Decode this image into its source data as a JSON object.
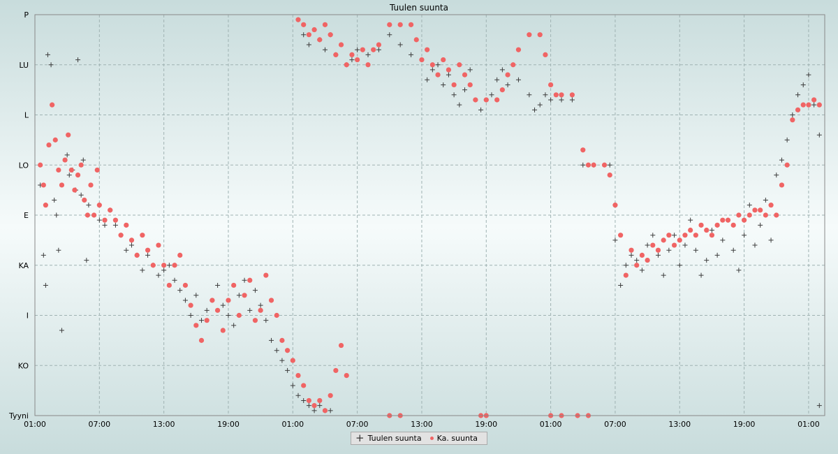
{
  "chart_data": {
    "type": "scatter",
    "title": "Tuulen suunta",
    "xlabel": "",
    "ylabel": "",
    "y_categories": [
      "Tyyni",
      "KO",
      "I",
      "KA",
      "E",
      "LO",
      "L",
      "LU",
      "P"
    ],
    "ylim": [
      0,
      8
    ],
    "xlim": [
      0,
      73.5
    ],
    "x_tick_labels": [
      "01:00",
      "07:00",
      "13:00",
      "19:00",
      "01:00",
      "07:00",
      "13:00",
      "19:00",
      "01:00",
      "07:00",
      "13:00",
      "19:00",
      "01:00"
    ],
    "x_tick_positions_hours": [
      0,
      6,
      12,
      18,
      24,
      30,
      36,
      42,
      48,
      54,
      60,
      66,
      72
    ],
    "grid": true,
    "legend_position": "bottom-center",
    "series": [
      {
        "name": "Tuulen suunta",
        "marker": "cross",
        "color": "#3c3c3c",
        "points": [
          [
            0.5,
            4.6
          ],
          [
            0.8,
            3.2
          ],
          [
            1,
            2.6
          ],
          [
            1.2,
            7.2
          ],
          [
            1.5,
            7.0
          ],
          [
            1.8,
            4.3
          ],
          [
            2,
            4.0
          ],
          [
            2.2,
            3.3
          ],
          [
            2.5,
            1.7
          ],
          [
            3,
            5.2
          ],
          [
            3.2,
            4.8
          ],
          [
            3.5,
            4.9
          ],
          [
            3.8,
            4.5
          ],
          [
            4,
            7.1
          ],
          [
            4.3,
            4.4
          ],
          [
            4.5,
            5.1
          ],
          [
            4.8,
            3.1
          ],
          [
            5,
            4.2
          ],
          [
            5.5,
            4.0
          ],
          [
            6,
            3.9
          ],
          [
            6.5,
            3.8
          ],
          [
            7,
            4.1
          ],
          [
            7.5,
            3.8
          ],
          [
            8,
            3.6
          ],
          [
            8.5,
            3.3
          ],
          [
            9,
            3.4
          ],
          [
            9.5,
            3.2
          ],
          [
            10,
            2.9
          ],
          [
            10.5,
            3.2
          ],
          [
            11,
            3.0
          ],
          [
            11.5,
            2.8
          ],
          [
            12,
            2.9
          ],
          [
            12.5,
            3.0
          ],
          [
            13,
            2.7
          ],
          [
            13.5,
            2.5
          ],
          [
            14,
            2.3
          ],
          [
            14.5,
            2.0
          ],
          [
            15,
            2.4
          ],
          [
            15.5,
            1.9
          ],
          [
            16,
            2.1
          ],
          [
            16.5,
            2.3
          ],
          [
            17,
            2.6
          ],
          [
            17.5,
            2.2
          ],
          [
            18,
            2.0
          ],
          [
            18.5,
            1.8
          ],
          [
            19,
            2.4
          ],
          [
            19.5,
            2.7
          ],
          [
            20,
            2.1
          ],
          [
            20.5,
            2.5
          ],
          [
            21,
            2.2
          ],
          [
            21.5,
            1.9
          ],
          [
            22,
            1.5
          ],
          [
            22.5,
            1.3
          ],
          [
            23,
            1.1
          ],
          [
            23.5,
            0.9
          ],
          [
            24,
            0.6
          ],
          [
            24.5,
            0.4
          ],
          [
            25,
            0.3
          ],
          [
            25.5,
            0.2
          ],
          [
            26,
            0.1
          ],
          [
            26.5,
            0.2
          ],
          [
            27,
            0.1
          ],
          [
            27.5,
            0.1
          ],
          [
            24.5,
            7.9
          ],
          [
            25,
            7.6
          ],
          [
            25.5,
            7.4
          ],
          [
            26,
            7.7
          ],
          [
            26.5,
            7.5
          ],
          [
            27,
            7.3
          ],
          [
            27.5,
            7.6
          ],
          [
            28,
            7.2
          ],
          [
            28.5,
            7.4
          ],
          [
            29,
            7.0
          ],
          [
            29.5,
            7.1
          ],
          [
            30,
            7.3
          ],
          [
            31,
            7.2
          ],
          [
            32,
            7.3
          ],
          [
            33,
            7.6
          ],
          [
            34,
            7.4
          ],
          [
            35,
            7.2
          ],
          [
            36,
            7.1
          ],
          [
            36.5,
            6.7
          ],
          [
            37,
            6.9
          ],
          [
            37.5,
            7.0
          ],
          [
            38,
            6.6
          ],
          [
            38.5,
            6.8
          ],
          [
            39,
            6.4
          ],
          [
            39.5,
            6.2
          ],
          [
            40,
            6.5
          ],
          [
            40.5,
            6.9
          ],
          [
            41,
            6.3
          ],
          [
            41.5,
            6.1
          ],
          [
            42,
            6.3
          ],
          [
            42.5,
            6.4
          ],
          [
            43,
            6.7
          ],
          [
            43.5,
            6.9
          ],
          [
            44,
            6.6
          ],
          [
            45,
            6.7
          ],
          [
            46,
            6.4
          ],
          [
            46.5,
            6.1
          ],
          [
            47,
            6.2
          ],
          [
            47.5,
            6.4
          ],
          [
            48,
            6.3
          ],
          [
            49,
            6.3
          ],
          [
            50,
            6.3
          ],
          [
            51,
            5.0
          ],
          [
            52,
            5.0
          ],
          [
            53.5,
            5.0
          ],
          [
            54,
            3.5
          ],
          [
            54.5,
            2.6
          ],
          [
            55,
            3.0
          ],
          [
            55.5,
            3.2
          ],
          [
            56,
            3.1
          ],
          [
            56.5,
            2.9
          ],
          [
            57,
            3.4
          ],
          [
            57.5,
            3.6
          ],
          [
            58,
            3.2
          ],
          [
            58.5,
            2.8
          ],
          [
            59,
            3.3
          ],
          [
            59.5,
            3.6
          ],
          [
            60,
            3.0
          ],
          [
            60.5,
            3.4
          ],
          [
            61,
            3.9
          ],
          [
            61.5,
            3.3
          ],
          [
            62,
            2.8
          ],
          [
            62.5,
            3.1
          ],
          [
            63,
            3.7
          ],
          [
            63.5,
            3.2
          ],
          [
            64,
            3.5
          ],
          [
            64.5,
            3.9
          ],
          [
            65,
            3.3
          ],
          [
            65.5,
            2.9
          ],
          [
            66,
            3.6
          ],
          [
            66.5,
            4.2
          ],
          [
            67,
            3.4
          ],
          [
            67.5,
            3.8
          ],
          [
            68,
            4.3
          ],
          [
            68.5,
            3.5
          ],
          [
            69,
            4.8
          ],
          [
            69.5,
            5.1
          ],
          [
            70,
            5.5
          ],
          [
            70.5,
            6.0
          ],
          [
            71,
            6.4
          ],
          [
            71.5,
            6.6
          ],
          [
            72,
            6.8
          ],
          [
            72.5,
            6.2
          ],
          [
            73,
            5.6
          ],
          [
            73,
            0.2
          ]
        ]
      },
      {
        "name": "Ka. suunta",
        "marker": "dot",
        "color": "#f06464",
        "points": [
          [
            0.5,
            5.0
          ],
          [
            0.8,
            4.6
          ],
          [
            1.0,
            4.2
          ],
          [
            1.3,
            5.4
          ],
          [
            1.6,
            6.2
          ],
          [
            1.9,
            5.5
          ],
          [
            2.2,
            4.9
          ],
          [
            2.5,
            4.6
          ],
          [
            2.8,
            5.1
          ],
          [
            3.1,
            5.6
          ],
          [
            3.4,
            4.9
          ],
          [
            3.7,
            4.5
          ],
          [
            4.0,
            4.8
          ],
          [
            4.3,
            5.0
          ],
          [
            4.6,
            4.3
          ],
          [
            4.9,
            4.0
          ],
          [
            5.2,
            4.6
          ],
          [
            5.5,
            4.0
          ],
          [
            5.8,
            4.9
          ],
          [
            6.0,
            4.2
          ],
          [
            6.5,
            3.9
          ],
          [
            7.0,
            4.1
          ],
          [
            7.5,
            3.9
          ],
          [
            8.0,
            3.6
          ],
          [
            8.5,
            3.8
          ],
          [
            9.0,
            3.5
          ],
          [
            9.5,
            3.2
          ],
          [
            10.0,
            3.6
          ],
          [
            10.5,
            3.3
          ],
          [
            11.0,
            3.0
          ],
          [
            11.5,
            3.4
          ],
          [
            12.0,
            3.0
          ],
          [
            12.5,
            2.6
          ],
          [
            13.0,
            3.0
          ],
          [
            13.5,
            3.2
          ],
          [
            14.0,
            2.6
          ],
          [
            14.5,
            2.2
          ],
          [
            15.0,
            1.8
          ],
          [
            15.5,
            1.5
          ],
          [
            16.0,
            1.9
          ],
          [
            16.5,
            2.3
          ],
          [
            17.0,
            2.1
          ],
          [
            17.5,
            1.7
          ],
          [
            18.0,
            2.3
          ],
          [
            18.5,
            2.6
          ],
          [
            19.0,
            2.0
          ],
          [
            19.5,
            2.4
          ],
          [
            20.0,
            2.7
          ],
          [
            20.5,
            1.9
          ],
          [
            21.0,
            2.1
          ],
          [
            21.5,
            2.8
          ],
          [
            22.0,
            2.3
          ],
          [
            22.5,
            2.0
          ],
          [
            23.0,
            1.5
          ],
          [
            23.5,
            1.3
          ],
          [
            24.0,
            1.1
          ],
          [
            24.5,
            0.8
          ],
          [
            25.0,
            0.6
          ],
          [
            25.5,
            0.3
          ],
          [
            26.0,
            0.2
          ],
          [
            26.5,
            0.3
          ],
          [
            27.0,
            0.1
          ],
          [
            27.5,
            0.4
          ],
          [
            28.0,
            0.9
          ],
          [
            28.5,
            1.4
          ],
          [
            29.0,
            0.8
          ],
          [
            24.5,
            7.9
          ],
          [
            25,
            7.8
          ],
          [
            25.5,
            7.6
          ],
          [
            26,
            7.7
          ],
          [
            26.5,
            7.5
          ],
          [
            27,
            7.8
          ],
          [
            27.5,
            7.6
          ],
          [
            28,
            7.2
          ],
          [
            28.5,
            7.4
          ],
          [
            29,
            7.0
          ],
          [
            29.5,
            7.2
          ],
          [
            30,
            7.1
          ],
          [
            30.5,
            7.3
          ],
          [
            31,
            7.0
          ],
          [
            31.5,
            7.3
          ],
          [
            32,
            7.4
          ],
          [
            33,
            7.8
          ],
          [
            34,
            7.8
          ],
          [
            35,
            7.8
          ],
          [
            35.5,
            7.5
          ],
          [
            36,
            7.1
          ],
          [
            36.5,
            7.3
          ],
          [
            37,
            7.0
          ],
          [
            37.5,
            6.8
          ],
          [
            38,
            7.1
          ],
          [
            38.5,
            6.9
          ],
          [
            39,
            6.6
          ],
          [
            39.5,
            7.0
          ],
          [
            40,
            6.8
          ],
          [
            40.5,
            6.6
          ],
          [
            41,
            6.3
          ],
          [
            42,
            6.3
          ],
          [
            43,
            6.3
          ],
          [
            43.5,
            6.5
          ],
          [
            44,
            6.8
          ],
          [
            44.5,
            7.0
          ],
          [
            45,
            7.3
          ],
          [
            46,
            7.6
          ],
          [
            47,
            7.6
          ],
          [
            47.5,
            7.2
          ],
          [
            48,
            6.6
          ],
          [
            48.5,
            6.4
          ],
          [
            49,
            6.4
          ],
          [
            50,
            6.4
          ],
          [
            51,
            5.3
          ],
          [
            51.5,
            5.0
          ],
          [
            52,
            5.0
          ],
          [
            53,
            5.0
          ],
          [
            53.5,
            4.8
          ],
          [
            54,
            4.2
          ],
          [
            54.5,
            3.6
          ],
          [
            55,
            2.8
          ],
          [
            55.5,
            3.3
          ],
          [
            56,
            3.0
          ],
          [
            56.5,
            3.2
          ],
          [
            57,
            3.1
          ],
          [
            57.5,
            3.4
          ],
          [
            58,
            3.3
          ],
          [
            58.5,
            3.5
          ],
          [
            59,
            3.6
          ],
          [
            59.5,
            3.4
          ],
          [
            60,
            3.5
          ],
          [
            60.5,
            3.6
          ],
          [
            61,
            3.7
          ],
          [
            61.5,
            3.6
          ],
          [
            62,
            3.8
          ],
          [
            62.5,
            3.7
          ],
          [
            63,
            3.6
          ],
          [
            63.5,
            3.8
          ],
          [
            64,
            3.9
          ],
          [
            64.5,
            3.9
          ],
          [
            65,
            3.8
          ],
          [
            65.5,
            4.0
          ],
          [
            66,
            3.9
          ],
          [
            66.5,
            4.0
          ],
          [
            67,
            4.1
          ],
          [
            67.5,
            4.1
          ],
          [
            68,
            4.0
          ],
          [
            68.5,
            4.2
          ],
          [
            69,
            4.0
          ],
          [
            69.5,
            4.6
          ],
          [
            70,
            5.0
          ],
          [
            70.5,
            5.9
          ],
          [
            71,
            6.1
          ],
          [
            71.5,
            6.2
          ],
          [
            72,
            6.2
          ],
          [
            72.5,
            6.3
          ],
          [
            73,
            6.2
          ],
          [
            33,
            0.0
          ],
          [
            34,
            0.0
          ],
          [
            41.5,
            0.0
          ],
          [
            42,
            0.0
          ],
          [
            48,
            0.0
          ],
          [
            49,
            0.0
          ],
          [
            50.5,
            0.0
          ],
          [
            51.5,
            0.0
          ]
        ]
      }
    ]
  }
}
